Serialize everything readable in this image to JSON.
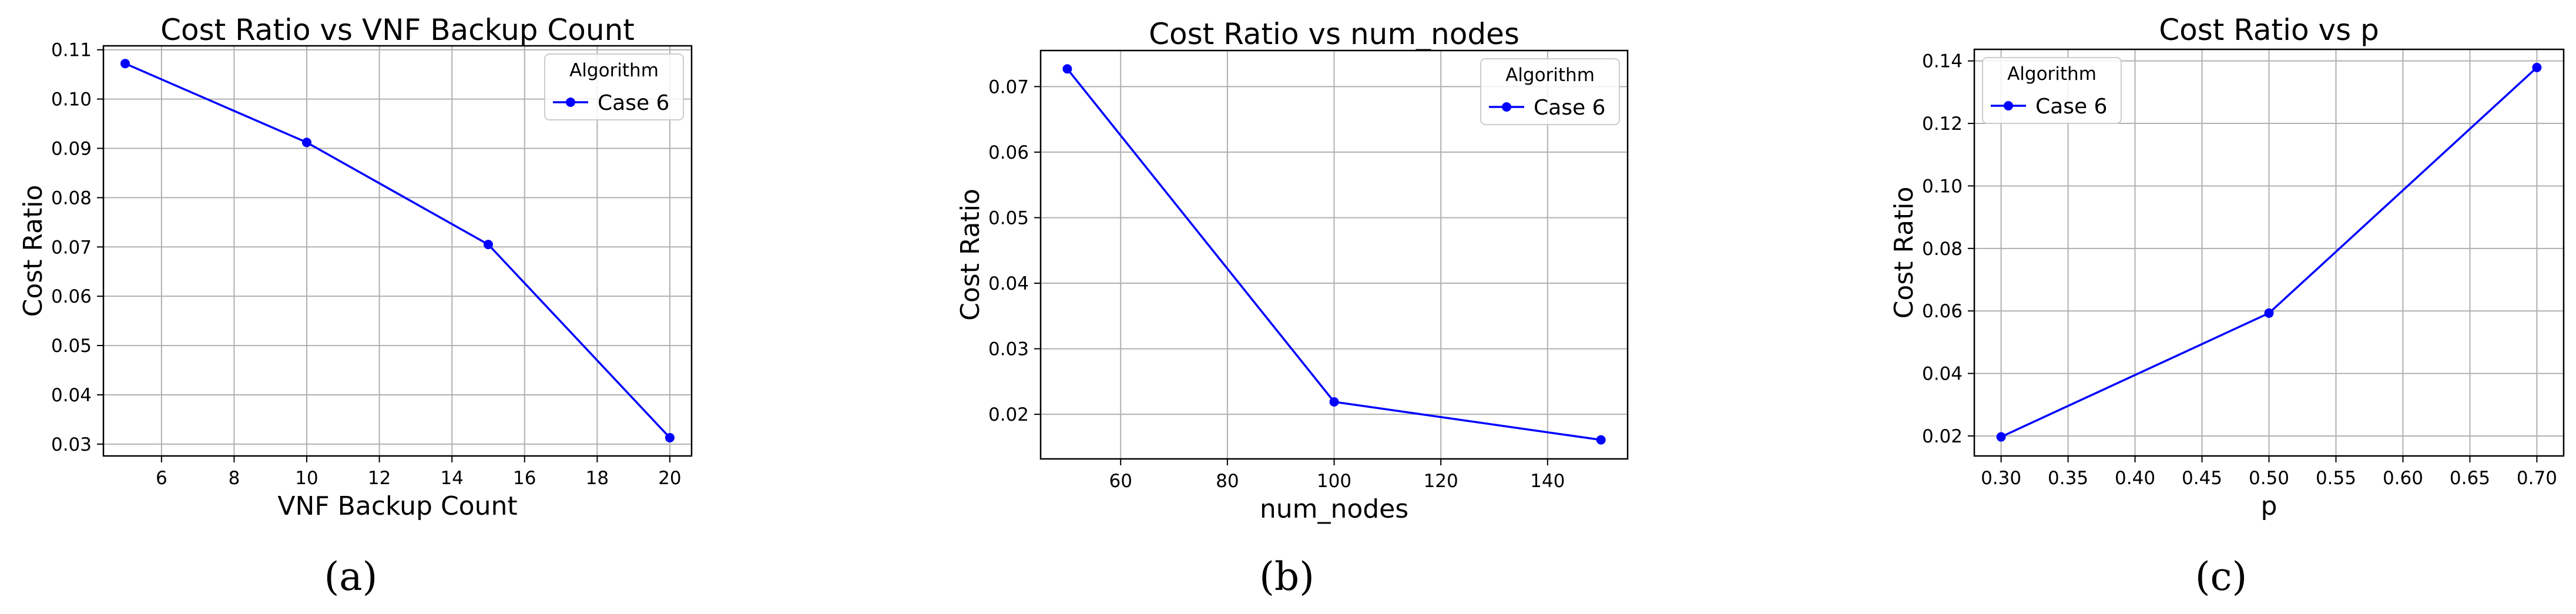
{
  "chart_data": [
    {
      "type": "line",
      "title": "Cost Ratio vs VNF Backup Count",
      "xlabel": "VNF Backup Count",
      "ylabel": "Cost Ratio",
      "xlim": [
        4.4,
        20.6
      ],
      "ylim": [
        0.0276,
        0.1108
      ],
      "xticks": [
        6,
        8,
        10,
        12,
        14,
        16,
        18,
        20
      ],
      "xtick_labels": [
        "6",
        "8",
        "10",
        "12",
        "14",
        "16",
        "18",
        "20"
      ],
      "yticks": [
        0.03,
        0.04,
        0.05,
        0.06,
        0.07,
        0.08,
        0.09,
        0.1,
        0.11
      ],
      "ytick_labels": [
        "0.03",
        "0.04",
        "0.05",
        "0.06",
        "0.07",
        "0.08",
        "0.09",
        "0.10",
        "0.11"
      ],
      "grid": true,
      "legend_title": "Algorithm",
      "legend_position": "top-right",
      "series": [
        {
          "name": "Case 6",
          "color": "#0000ff",
          "x": [
            5,
            10,
            15,
            20
          ],
          "y": [
            0.1072,
            0.0912,
            0.0705,
            0.0313
          ]
        }
      ],
      "caption": "(a)"
    },
    {
      "type": "line",
      "title": "Cost Ratio vs num_nodes",
      "xlabel": "num_nodes",
      "ylabel": "Cost Ratio",
      "xlim": [
        45,
        155
      ],
      "ylim": [
        0.0132,
        0.0755
      ],
      "xticks": [
        60,
        80,
        100,
        120,
        140
      ],
      "xtick_labels": [
        "60",
        "80",
        "100",
        "120",
        "140"
      ],
      "yticks": [
        0.02,
        0.03,
        0.04,
        0.05,
        0.06,
        0.07
      ],
      "ytick_labels": [
        "0.02",
        "0.03",
        "0.04",
        "0.05",
        "0.06",
        "0.07"
      ],
      "grid": true,
      "legend_title": "Algorithm",
      "legend_position": "top-right",
      "series": [
        {
          "name": "Case 6",
          "color": "#0000ff",
          "x": [
            50,
            100,
            150
          ],
          "y": [
            0.0727,
            0.0219,
            0.0161
          ]
        }
      ],
      "caption": "(b)"
    },
    {
      "type": "line",
      "title": "Cost Ratio vs p",
      "xlabel": "p",
      "ylabel": "Cost Ratio",
      "xlim": [
        0.28,
        0.72
      ],
      "ylim": [
        0.0136,
        0.1437
      ],
      "xticks": [
        0.3,
        0.35,
        0.4,
        0.45,
        0.5,
        0.55,
        0.6,
        0.65,
        0.7
      ],
      "xtick_labels": [
        "0.30",
        "0.35",
        "0.40",
        "0.45",
        "0.50",
        "0.55",
        "0.60",
        "0.65",
        "0.70"
      ],
      "yticks": [
        0.02,
        0.04,
        0.06,
        0.08,
        0.1,
        0.12,
        0.14
      ],
      "ytick_labels": [
        "0.02",
        "0.04",
        "0.06",
        "0.08",
        "0.10",
        "0.12",
        "0.14"
      ],
      "grid": true,
      "legend_title": "Algorithm",
      "legend_position": "top-left",
      "series": [
        {
          "name": "Case 6",
          "color": "#0000ff",
          "x": [
            0.3,
            0.5,
            0.7
          ],
          "y": [
            0.0197,
            0.0593,
            0.1379
          ]
        }
      ],
      "caption": "(c)"
    }
  ]
}
